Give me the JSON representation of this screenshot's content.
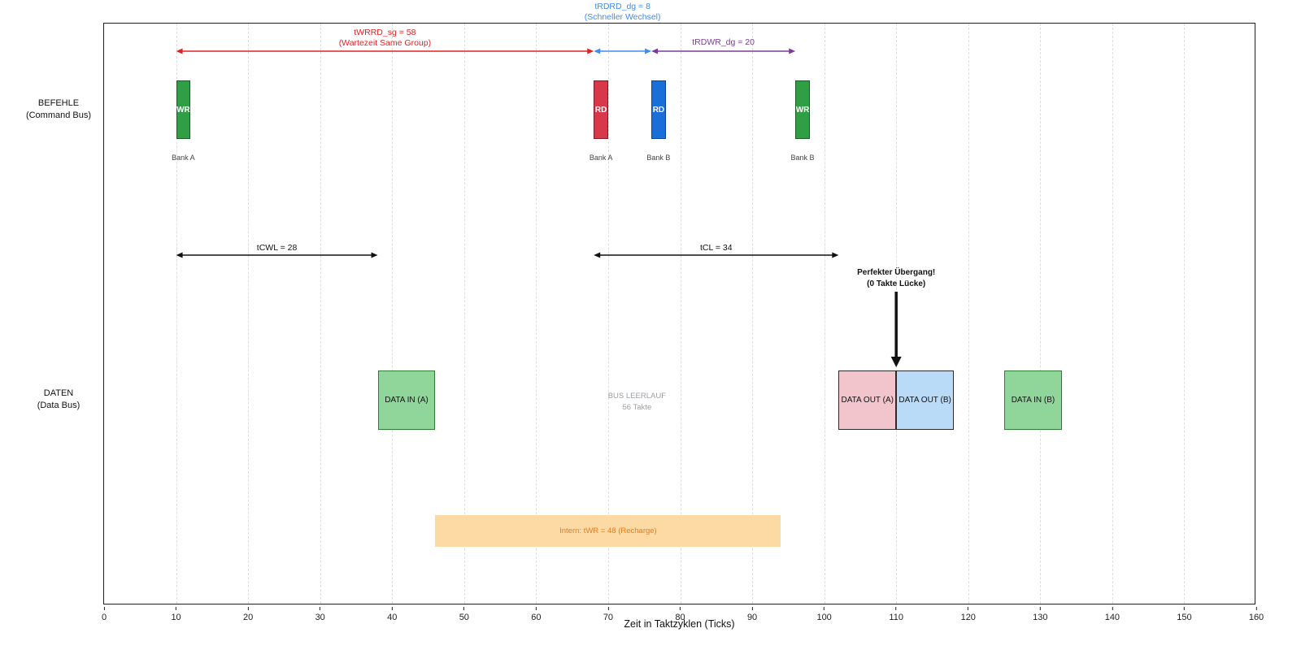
{
  "axis": {
    "title": "Zeit in Taktzyklen (Ticks)",
    "min": 0,
    "max": 160,
    "step": 10
  },
  "rows": {
    "commands": {
      "label_line1": "BEFEHLE",
      "label_line2": "(Command Bus)"
    },
    "data": {
      "label_line1": "DATEN",
      "label_line2": "(Data Bus)"
    }
  },
  "chart_data": {
    "type": "timing-diagram",
    "xlabel": "Zeit in Taktzyklen (Ticks)",
    "x_range": [
      0,
      160
    ],
    "x_tick_step": 10,
    "grid": "vertical-dashed",
    "commands": [
      {
        "label": "WR",
        "bank": "Bank A",
        "start": 10,
        "end": 12,
        "fill": "#2f9e44",
        "border": "#1b5e20",
        "text_color": "#ffffff"
      },
      {
        "label": "RD",
        "bank": "Bank A",
        "start": 68,
        "end": 70,
        "fill": "#d7394a",
        "border": "#871722",
        "text_color": "#ffffff"
      },
      {
        "label": "RD",
        "bank": "Bank B",
        "start": 76,
        "end": 78,
        "fill": "#1a6ed8",
        "border": "#0b4596",
        "text_color": "#ffffff"
      },
      {
        "label": "WR",
        "bank": "Bank B",
        "start": 96,
        "end": 98,
        "fill": "#2f9e44",
        "border": "#1b5e20",
        "text_color": "#ffffff"
      }
    ],
    "timing_arrows_top": [
      {
        "name": "tWRRD_sg",
        "label_line1": "tWRRD_sg = 58",
        "label_line2": "(Wartezeit Same Group)",
        "start": 10,
        "end": 68,
        "color": "#e02424",
        "label_pos": "above"
      },
      {
        "name": "tRDRD_dg",
        "label_line1": "tRDRD_dg = 8",
        "label_line2": "(Schneller Wechsel)",
        "start": 68,
        "end": 76,
        "color": "#3e8df5",
        "label_pos": "outside-top"
      },
      {
        "name": "tRDWR_dg",
        "label_line1": "tRDWR_dg = 20",
        "label_line2": "",
        "start": 76,
        "end": 96,
        "color": "#7d3c98",
        "label_pos": "above"
      }
    ],
    "latency_arrows": [
      {
        "name": "tCWL",
        "label": "tCWL = 28",
        "start": 10,
        "end": 38,
        "color": "#111111"
      },
      {
        "name": "tCL",
        "label": "tCL = 34",
        "start": 68,
        "end": 102,
        "color": "#111111"
      }
    ],
    "data_blocks": [
      {
        "label": "DATA IN (A)",
        "start": 38,
        "end": 46,
        "fill": "#90d69a",
        "border": "#2e7d32",
        "text_color": "#111111"
      },
      {
        "label": "DATA OUT (A)",
        "start": 102,
        "end": 110,
        "fill": "#f2c5cc",
        "border": "#2b2b2b",
        "text_color": "#111111"
      },
      {
        "label": "DATA OUT (B)",
        "start": 110,
        "end": 118,
        "fill": "#badbf7",
        "border": "#2b2b2b",
        "text_color": "#111111"
      },
      {
        "label": "DATA IN (B)",
        "start": 125,
        "end": 133,
        "fill": "#90d69a",
        "border": "#2e7d32",
        "text_color": "#111111"
      }
    ],
    "idle_note": {
      "line1": "BUS LEERLAUF",
      "line2": "56 Takte",
      "x": 74,
      "color": "#9aa0a6"
    },
    "transition_annotation": {
      "line1": "Perfekter Übergang!",
      "line2": "(0 Takte Lücke)",
      "x": 110,
      "color": "#111111"
    },
    "internal_block": {
      "label": "Intern: tWR = 48 (Recharge)",
      "start": 46,
      "end": 94,
      "fill": "#fdd9a3",
      "text_color": "#e67e22"
    }
  }
}
